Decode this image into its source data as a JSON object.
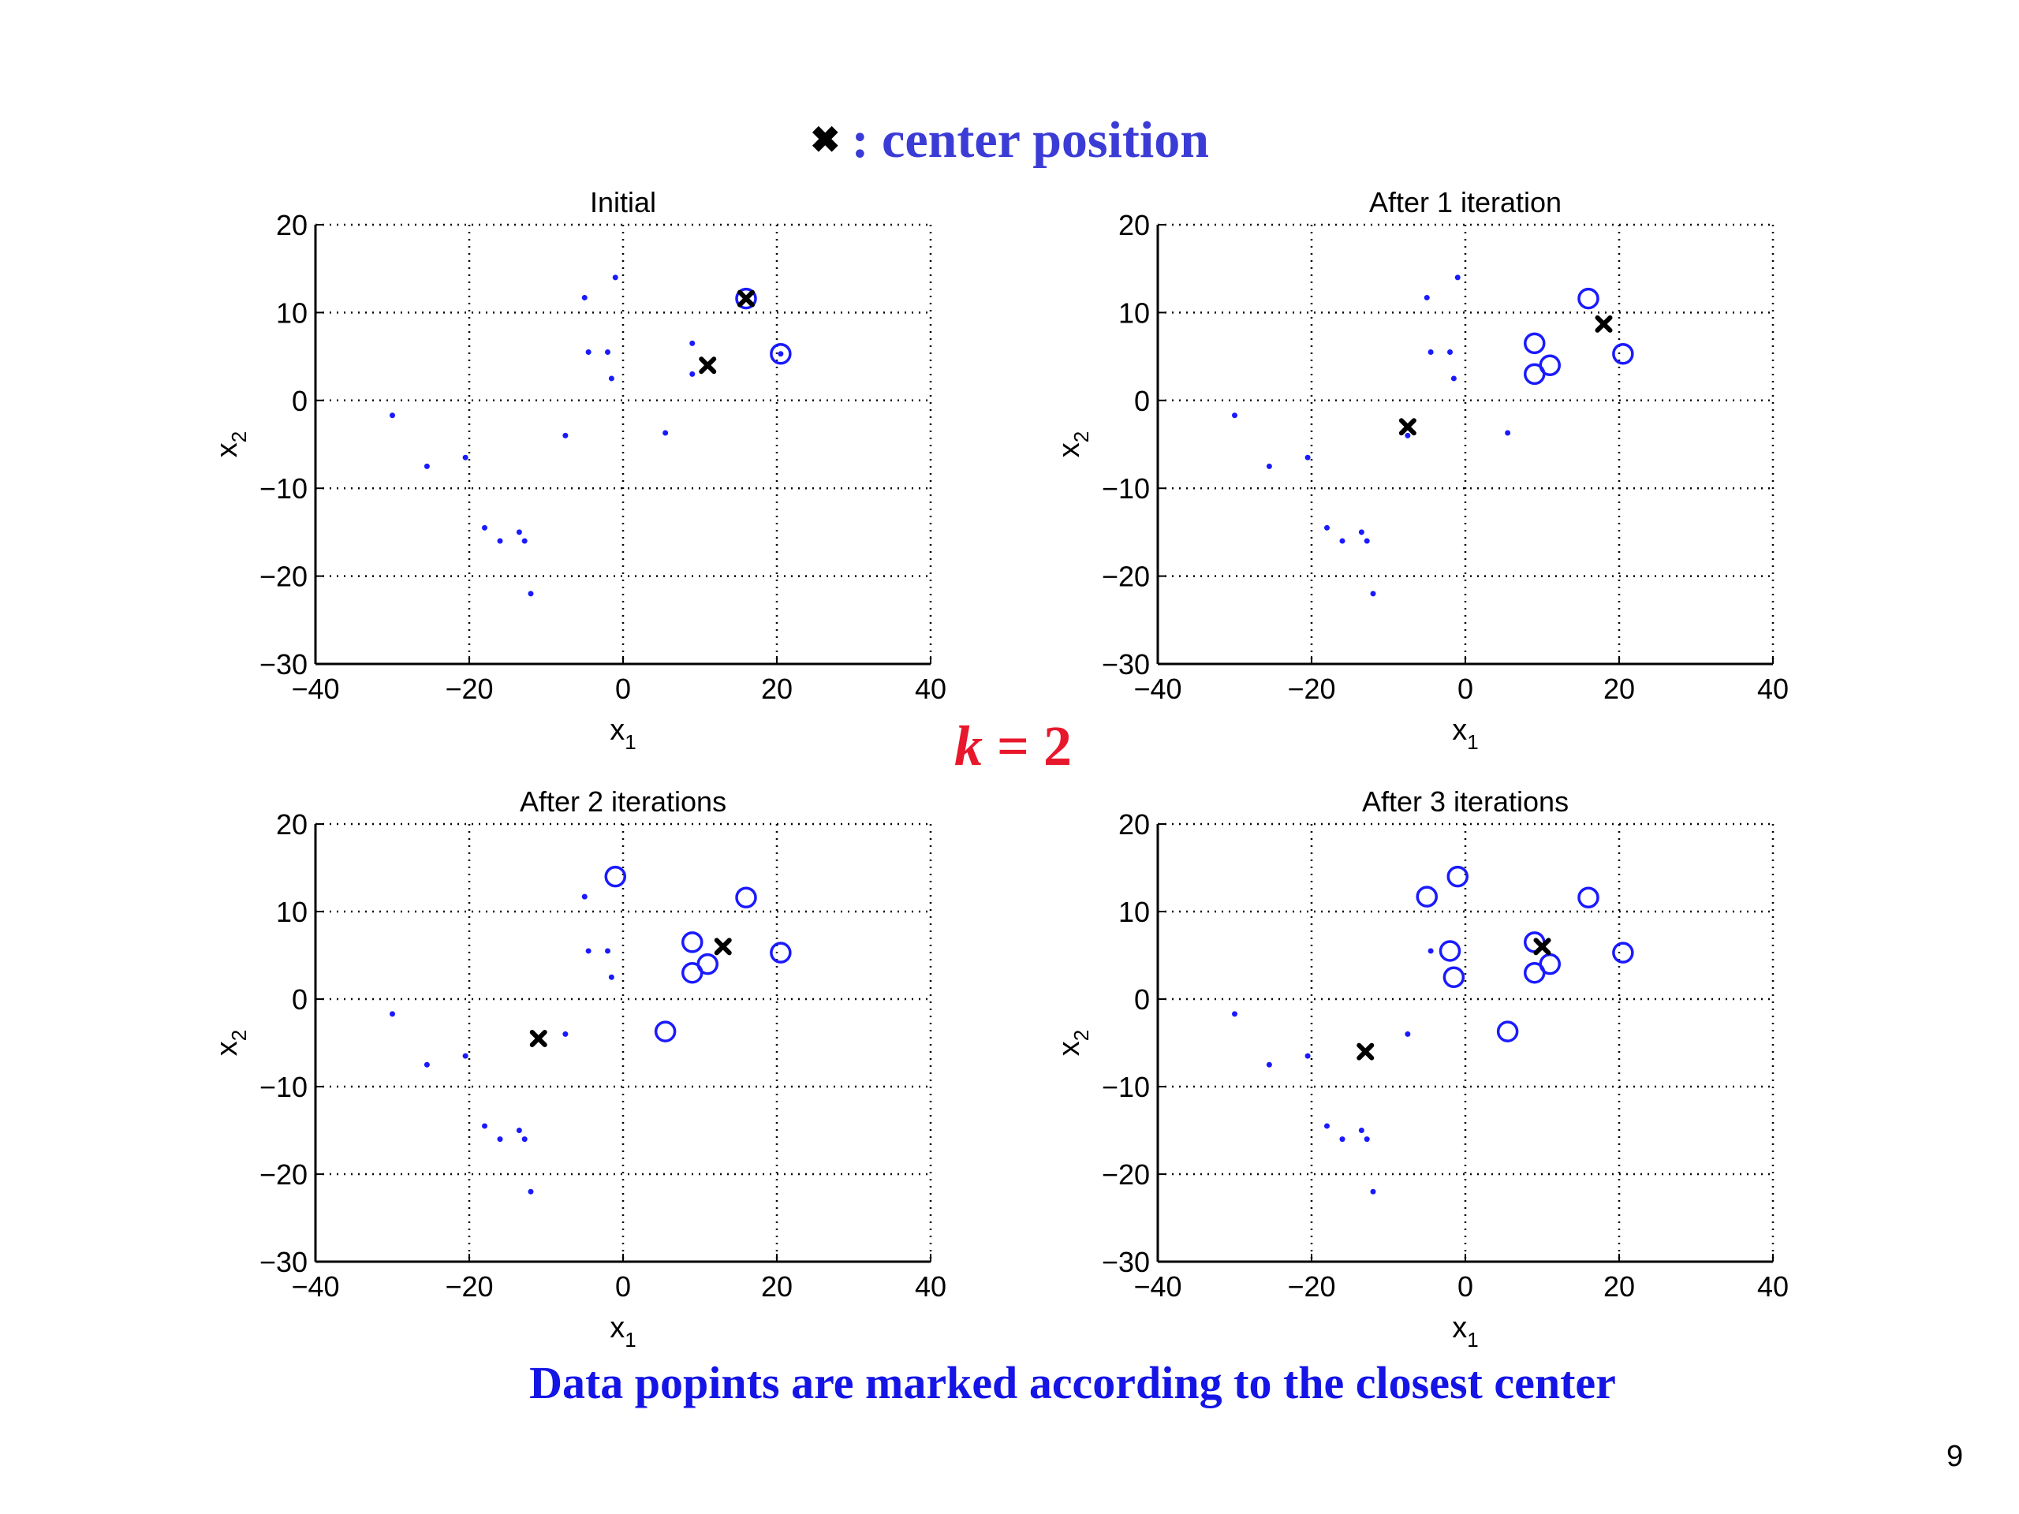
{
  "legend": {
    "marker": "✖",
    "text": ": center position"
  },
  "k_label": {
    "k": "k",
    "rest": " = 2"
  },
  "caption": "Data popints are marked according to the closest center",
  "page_number": "9",
  "colors": {
    "points": "#1a1aff",
    "center": "#000000",
    "legend_text": "#3b3bd6",
    "k_text": "#e8182c",
    "caption_text": "#1414e6"
  },
  "chart_data": [
    {
      "type": "scatter",
      "title": "Initial",
      "xlabel": "x",
      "xlabel_sub": "1",
      "ylabel": "x",
      "ylabel_sub": "2",
      "xlim": [
        -40,
        40
      ],
      "ylim": [
        -30,
        20
      ],
      "xticks": [
        -40,
        -20,
        0,
        20,
        40
      ],
      "yticks": [
        20,
        10,
        0,
        -10,
        -20,
        -30
      ],
      "grid": true,
      "points": [
        [
          -30,
          -1.7
        ],
        [
          -25.5,
          -7.5
        ],
        [
          -20.5,
          -6.5
        ],
        [
          -18,
          -14.5
        ],
        [
          -16,
          -16
        ],
        [
          -13.5,
          -15
        ],
        [
          -12.8,
          -16
        ],
        [
          -12,
          -22
        ],
        [
          -7.5,
          -4
        ],
        [
          -5,
          11.7
        ],
        [
          -4.5,
          5.5
        ],
        [
          -2,
          5.5
        ],
        [
          -1.5,
          2.5
        ],
        [
          -1,
          14
        ],
        [
          5.5,
          -3.7
        ],
        [
          9,
          6.5
        ],
        [
          9,
          3
        ],
        [
          11,
          4
        ],
        [
          16,
          11.6
        ],
        [
          20.5,
          5.3
        ]
      ],
      "circled": [
        [
          16,
          11.6
        ],
        [
          20.5,
          5.3
        ]
      ],
      "centers": [
        [
          11,
          4
        ],
        [
          16,
          11.6
        ]
      ]
    },
    {
      "type": "scatter",
      "title": "After 1 iteration",
      "xlabel": "x",
      "xlabel_sub": "1",
      "ylabel": "x",
      "ylabel_sub": "2",
      "xlim": [
        -40,
        40
      ],
      "ylim": [
        -30,
        20
      ],
      "xticks": [
        -40,
        -20,
        0,
        20,
        40
      ],
      "yticks": [
        20,
        10,
        0,
        -10,
        -20,
        -30
      ],
      "grid": true,
      "points": [
        [
          -30,
          -1.7
        ],
        [
          -25.5,
          -7.5
        ],
        [
          -20.5,
          -6.5
        ],
        [
          -18,
          -14.5
        ],
        [
          -16,
          -16
        ],
        [
          -13.5,
          -15
        ],
        [
          -12.8,
          -16
        ],
        [
          -12,
          -22
        ],
        [
          -7.5,
          -4
        ],
        [
          -5,
          11.7
        ],
        [
          -4.5,
          5.5
        ],
        [
          -2,
          5.5
        ],
        [
          -1.5,
          2.5
        ],
        [
          -1,
          14
        ],
        [
          5.5,
          -3.7
        ]
      ],
      "circled": [
        [
          9,
          6.5
        ],
        [
          9,
          3
        ],
        [
          11,
          4
        ],
        [
          16,
          11.6
        ],
        [
          20.5,
          5.3
        ]
      ],
      "centers": [
        [
          -7.5,
          -3
        ],
        [
          18,
          8.7
        ]
      ]
    },
    {
      "type": "scatter",
      "title": "After 2 iterations",
      "xlabel": "x",
      "xlabel_sub": "1",
      "ylabel": "x",
      "ylabel_sub": "2",
      "xlim": [
        -40,
        40
      ],
      "ylim": [
        -30,
        20
      ],
      "xticks": [
        -40,
        -20,
        0,
        20,
        40
      ],
      "yticks": [
        20,
        10,
        0,
        -10,
        -20,
        -30
      ],
      "grid": true,
      "points": [
        [
          -30,
          -1.7
        ],
        [
          -25.5,
          -7.5
        ],
        [
          -20.5,
          -6.5
        ],
        [
          -18,
          -14.5
        ],
        [
          -16,
          -16
        ],
        [
          -13.5,
          -15
        ],
        [
          -12.8,
          -16
        ],
        [
          -12,
          -22
        ],
        [
          -7.5,
          -4
        ],
        [
          -5,
          11.7
        ],
        [
          -4.5,
          5.5
        ],
        [
          -2,
          5.5
        ],
        [
          -1.5,
          2.5
        ]
      ],
      "circled": [
        [
          -1,
          14
        ],
        [
          5.5,
          -3.7
        ],
        [
          9,
          6.5
        ],
        [
          9,
          3
        ],
        [
          11,
          4
        ],
        [
          16,
          11.6
        ],
        [
          20.5,
          5.3
        ]
      ],
      "centers": [
        [
          -11,
          -4.5
        ],
        [
          13,
          6
        ]
      ]
    },
    {
      "type": "scatter",
      "title": "After 3 iterations",
      "xlabel": "x",
      "xlabel_sub": "1",
      "ylabel": "x",
      "ylabel_sub": "2",
      "xlim": [
        -40,
        40
      ],
      "ylim": [
        -30,
        20
      ],
      "xticks": [
        -40,
        -20,
        0,
        20,
        40
      ],
      "yticks": [
        20,
        10,
        0,
        -10,
        -20,
        -30
      ],
      "grid": true,
      "points": [
        [
          -30,
          -1.7
        ],
        [
          -25.5,
          -7.5
        ],
        [
          -20.5,
          -6.5
        ],
        [
          -18,
          -14.5
        ],
        [
          -16,
          -16
        ],
        [
          -13.5,
          -15
        ],
        [
          -12.8,
          -16
        ],
        [
          -12,
          -22
        ],
        [
          -7.5,
          -4
        ],
        [
          -4.5,
          5.5
        ]
      ],
      "circled": [
        [
          -5,
          11.7
        ],
        [
          -1,
          14
        ],
        [
          -2,
          5.5
        ],
        [
          -1.5,
          2.5
        ],
        [
          5.5,
          -3.7
        ],
        [
          9,
          6.5
        ],
        [
          9,
          3
        ],
        [
          11,
          4
        ],
        [
          16,
          11.6
        ],
        [
          20.5,
          5.3
        ]
      ],
      "centers": [
        [
          -13,
          -6
        ],
        [
          10,
          6
        ]
      ]
    }
  ]
}
